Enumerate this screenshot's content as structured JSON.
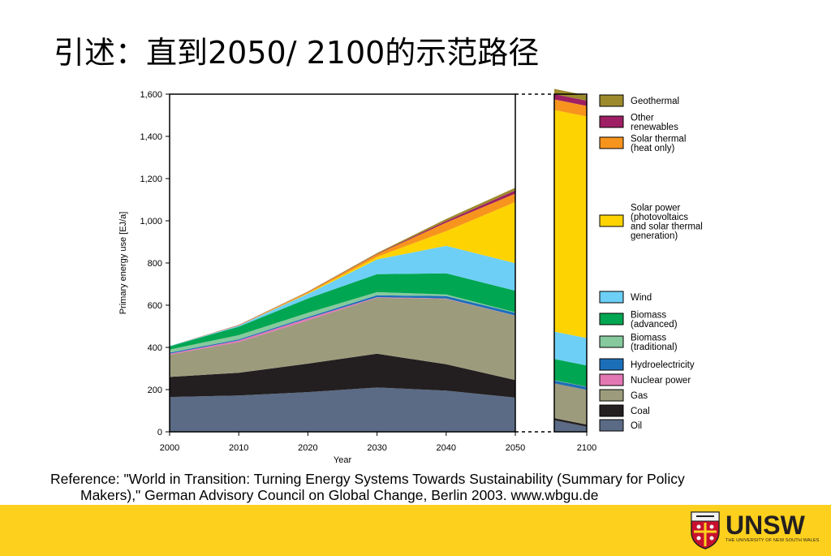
{
  "slide": {
    "title": "引述：直到2050/ 2100的示范路径"
  },
  "reference": {
    "line1": "Reference:  \"World in Transition: Turning Energy Systems Towards Sustainability (Summary for Policy",
    "line2": "Makers),\" German Advisory Council on Global Change, Berlin 2003. www.wbgu.de"
  },
  "logo": {
    "wordmark": "UNSW",
    "subtitle": "THE UNIVERSITY OF NEW SOUTH WALES"
  },
  "colors": {
    "footer": "#fcd01d"
  },
  "chart_data": {
    "type": "area",
    "stacked": true,
    "xlabel": "Year",
    "ylabel": "Primary energy use [EJ/a]",
    "x": [
      2000,
      2010,
      2020,
      2030,
      2040,
      2050
    ],
    "x_ticks": [
      "2000",
      "2010",
      "2020",
      "2030",
      "2040",
      "2050",
      "2100"
    ],
    "y_ticks": [
      "0",
      "200",
      "400",
      "600",
      "800",
      "1,000",
      "1,200",
      "1,400",
      "1,600"
    ],
    "ylim": [
      0,
      1600
    ],
    "axis_break": "between 2050 and 2100",
    "legend_position": "right",
    "series": [
      {
        "name": "Oil",
        "color": "#5b6b85",
        "values": [
          165,
          172,
          188,
          210,
          195,
          162
        ],
        "v2100": 55
      },
      {
        "name": "Coal",
        "color": "#231f20",
        "values": [
          95,
          108,
          135,
          160,
          125,
          83
        ],
        "v2100": 10
      },
      {
        "name": "Gas",
        "color": "#9c9b7c",
        "values": [
          105,
          145,
          205,
          265,
          310,
          305
        ],
        "v2100": 165
      },
      {
        "name": "Nuclear power",
        "color": "#e377b4",
        "values": [
          5,
          8,
          10,
          3,
          2,
          1
        ],
        "v2100": 0
      },
      {
        "name": "Hydroelectricity",
        "color": "#1b6fb8",
        "values": [
          5,
          5,
          6,
          9,
          11,
          13
        ],
        "v2100": 13
      },
      {
        "name": "Biomass (traditional)",
        "color": "#86c99d",
        "values": [
          15,
          20,
          20,
          15,
          8,
          2
        ],
        "v2100": 2
      },
      {
        "name": "Biomass (advanced)",
        "color": "#00a651",
        "values": [
          15,
          40,
          68,
          85,
          100,
          103
        ],
        "v2100": 100
      },
      {
        "name": "Wind",
        "color": "#6dcff6",
        "values": [
          2,
          5,
          22,
          70,
          130,
          130
        ],
        "v2100": 130
      },
      {
        "name": "Solar power (photovoltaics and solar thermal generation)",
        "color": "#fed302",
        "values": [
          0,
          0,
          3,
          12,
          70,
          290
        ],
        "v2100": 1050
      },
      {
        "name": "Solar thermal (heat only)",
        "color": "#f7941d",
        "values": [
          0,
          2,
          5,
          12,
          40,
          40
        ],
        "v2100": 50
      },
      {
        "name": "Other renewables",
        "color": "#9e1f63",
        "values": [
          0,
          1,
          1,
          2,
          8,
          15
        ],
        "v2100": 25
      },
      {
        "name": "Geothermal",
        "color": "#9d8a2c",
        "values": [
          0,
          1,
          2,
          4,
          10,
          13
        ],
        "v2100": 25
      }
    ],
    "legend": [
      {
        "label_lines": [
          "Geothermal"
        ],
        "series": "Geothermal"
      },
      {
        "label_lines": [
          "Other",
          "renewables"
        ],
        "series": "Other renewables"
      },
      {
        "label_lines": [
          "Solar thermal",
          "(heat only)"
        ],
        "series": "Solar thermal (heat only)"
      },
      {
        "label_lines": [
          "Solar power",
          "(photovoltaics",
          "and solar thermal",
          "generation)"
        ],
        "series": "Solar power (photovoltaics and solar thermal generation)"
      },
      {
        "label_lines": [
          "Wind"
        ],
        "series": "Wind"
      },
      {
        "label_lines": [
          "Biomass",
          "(advanced)"
        ],
        "series": "Biomass (advanced)"
      },
      {
        "label_lines": [
          "Biomass",
          "(traditional)"
        ],
        "series": "Biomass (traditional)"
      },
      {
        "label_lines": [
          "Hydroelectricity"
        ],
        "series": "Hydroelectricity"
      },
      {
        "label_lines": [
          "Nuclear power"
        ],
        "series": "Nuclear power"
      },
      {
        "label_lines": [
          "Gas"
        ],
        "series": "Gas"
      },
      {
        "label_lines": [
          "Coal"
        ],
        "series": "Coal"
      },
      {
        "label_lines": [
          "Oil"
        ],
        "series": "Oil"
      }
    ]
  }
}
